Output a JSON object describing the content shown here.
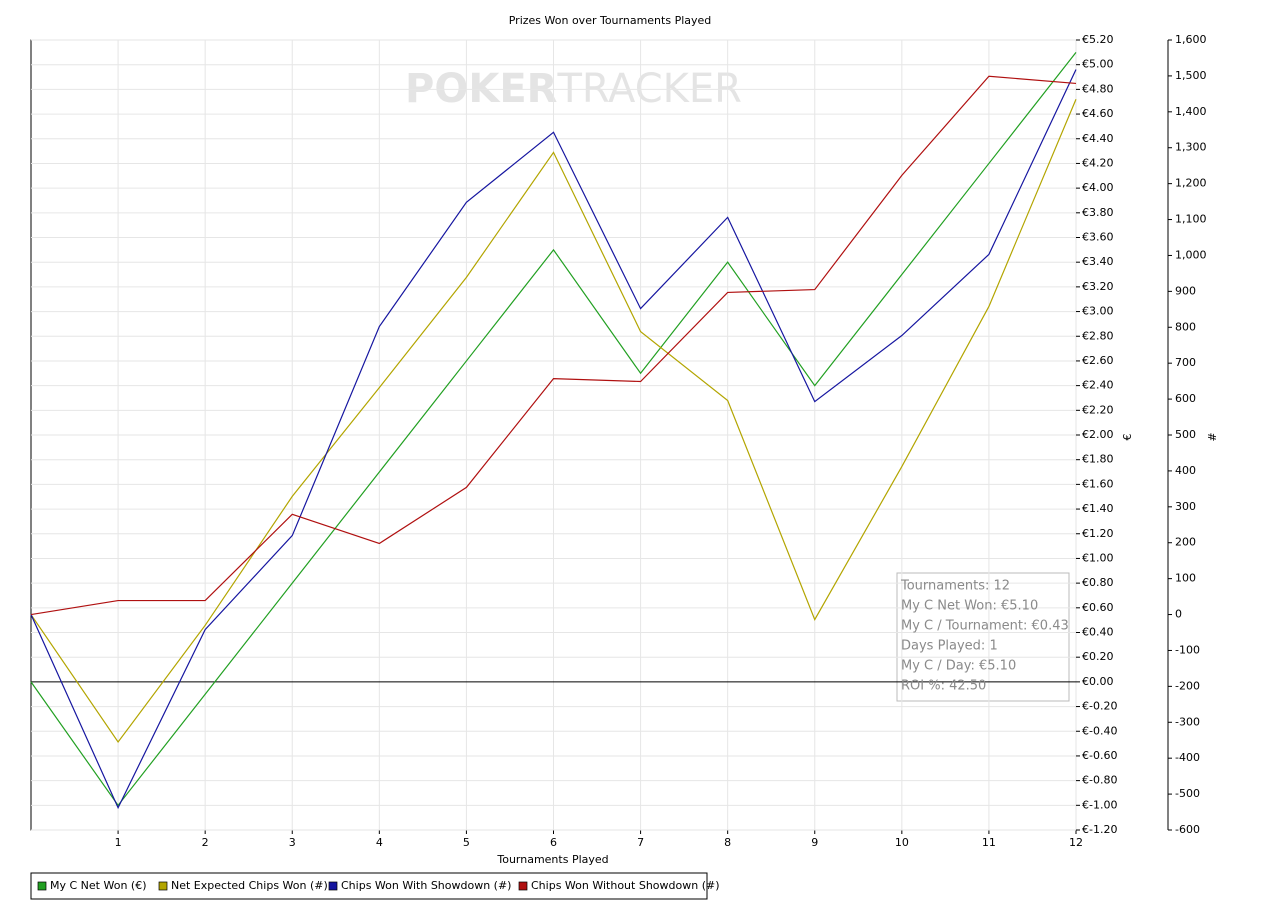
{
  "chart_data": {
    "type": "line",
    "title": "Prizes Won over Tournaments Played",
    "watermark": [
      "POKER",
      "TRACKER"
    ],
    "xlabel": "Tournaments Played",
    "ylabel": "€",
    "y2label": "#",
    "x": [
      0,
      1,
      2,
      3,
      4,
      5,
      6,
      7,
      8,
      9,
      10,
      11,
      12
    ],
    "xlim": [
      0,
      12
    ],
    "xticks": [
      1,
      2,
      3,
      4,
      5,
      6,
      7,
      8,
      9,
      10,
      11,
      12
    ],
    "ylim": [
      -1.2,
      5.2
    ],
    "yticks": [
      {
        "value": -1.2,
        "label": "€-1.20"
      },
      {
        "value": -1.0,
        "label": "€-1.00"
      },
      {
        "value": -0.8,
        "label": "€-0.80"
      },
      {
        "value": -0.6,
        "label": "€-0.60"
      },
      {
        "value": -0.4,
        "label": "€-0.40"
      },
      {
        "value": -0.2,
        "label": "€-0.20"
      },
      {
        "value": 0,
        "label": "€0.00"
      },
      {
        "value": 0.2,
        "label": "€0.20"
      },
      {
        "value": 0.4,
        "label": "€0.40"
      },
      {
        "value": 0.6,
        "label": "€0.60"
      },
      {
        "value": 0.8,
        "label": "€0.80"
      },
      {
        "value": 1.0,
        "label": "€1.00"
      },
      {
        "value": 1.2,
        "label": "€1.20"
      },
      {
        "value": 1.4,
        "label": "€1.40"
      },
      {
        "value": 1.6,
        "label": "€1.60"
      },
      {
        "value": 1.8,
        "label": "€1.80"
      },
      {
        "value": 2.0,
        "label": "€2.00"
      },
      {
        "value": 2.2,
        "label": "€2.20"
      },
      {
        "value": 2.4,
        "label": "€2.40"
      },
      {
        "value": 2.6,
        "label": "€2.60"
      },
      {
        "value": 2.8,
        "label": "€2.80"
      },
      {
        "value": 3.0,
        "label": "€3.00"
      },
      {
        "value": 3.2,
        "label": "€3.20"
      },
      {
        "value": 3.4,
        "label": "€3.40"
      },
      {
        "value": 3.6,
        "label": "€3.60"
      },
      {
        "value": 3.8,
        "label": "€3.80"
      },
      {
        "value": 4.0,
        "label": "€4.00"
      },
      {
        "value": 4.2,
        "label": "€4.20"
      },
      {
        "value": 4.4,
        "label": "€4.40"
      },
      {
        "value": 4.6,
        "label": "€4.60"
      },
      {
        "value": 4.8,
        "label": "€4.80"
      },
      {
        "value": 5.0,
        "label": "€5.00"
      },
      {
        "value": 5.2,
        "label": "€5.20"
      }
    ],
    "y2lim": [
      -600,
      1600
    ],
    "y2ticks": [
      -600,
      -500,
      -400,
      -300,
      -200,
      -100,
      0,
      100,
      200,
      300,
      400,
      500,
      600,
      700,
      800,
      900,
      {
        "value": 1000,
        "label": "1,000"
      },
      {
        "value": 1100,
        "label": "1,100"
      },
      {
        "value": 1200,
        "label": "1,200"
      },
      {
        "value": 1300,
        "label": "1,300"
      },
      {
        "value": 1400,
        "label": "1,400"
      },
      {
        "value": 1500,
        "label": "1,500"
      },
      {
        "value": 1600,
        "label": "1,600"
      }
    ],
    "grid": true,
    "legend": "bottom",
    "series": [
      {
        "name": "My C Net Won (€)",
        "color": "#22a022",
        "axis": "y",
        "values": [
          0,
          -1.0,
          -0.1,
          0.8,
          1.7,
          2.6,
          3.5,
          2.5,
          3.4,
          2.4,
          3.3,
          4.2,
          5.1
        ]
      },
      {
        "name": "Net Expected Chips Won (#)",
        "color": "#b3a500",
        "axis": "y2",
        "values": [
          0,
          -355,
          -30,
          329,
          632,
          939,
          1287,
          788,
          596,
          -14,
          412,
          858,
          1435
        ]
      },
      {
        "name": "Chips Won With Showdown (#)",
        "color": "#1616a0",
        "axis": "y2",
        "values": [
          0,
          -538,
          -42,
          220,
          802,
          1148,
          1343,
          852,
          1106,
          593,
          777,
          1003,
          1518
        ]
      },
      {
        "name": "Chips Won Without Showdown (#)",
        "color": "#b01010",
        "axis": "y2",
        "values": [
          0,
          39,
          39,
          279,
          198,
          354,
          657,
          649,
          897,
          905,
          1223,
          1499,
          1479
        ]
      }
    ],
    "info": [
      "Tournaments: 12",
      "My C Net Won: €5.10",
      "My C / Tournament: €0.43",
      "Days Played: 1",
      "My C / Day: €5.10",
      "ROI %: 42.50"
    ]
  }
}
